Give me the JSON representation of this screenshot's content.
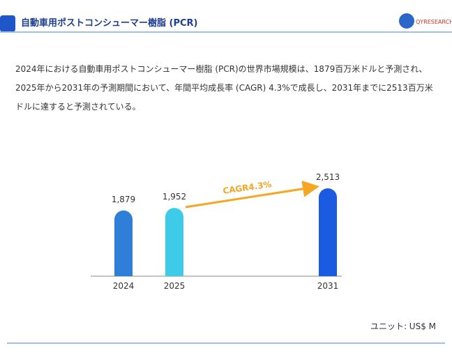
{
  "header": {
    "title": "自動車用ポストコンシューマー樹脂 (PCR)",
    "logo": "QYRESEARCH"
  },
  "description": "2024年における自動車用ポストコンシューマー樹脂 (PCR)の世界市場規模は、1879百万米ドルと予測され、2025年から2031年の予測期間において、年間平均成長率 (CAGR) 4.3%で成長し、2031年までに2513百万米ドルに達すると予測されている。",
  "chart_data": {
    "type": "bar",
    "categories": [
      "2024",
      "2025",
      "2031"
    ],
    "values": [
      1879,
      1952,
      2513
    ],
    "value_labels": [
      "1,879",
      "1,952",
      "2,513"
    ],
    "colors": [
      "#2f7fd8",
      "#3dcbe9",
      "#1b5be2"
    ],
    "annotation": "CAGR4.3%",
    "unit": "ユニット: US$ M"
  }
}
